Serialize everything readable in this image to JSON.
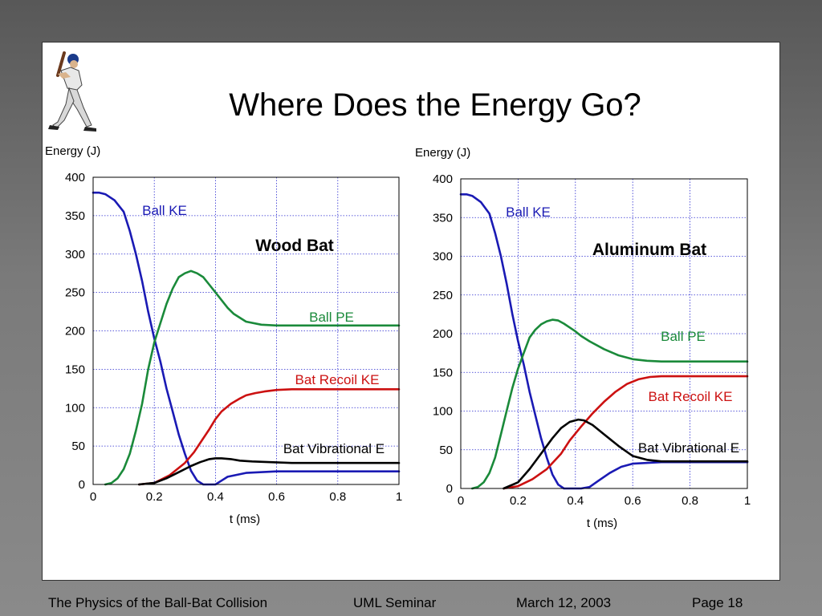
{
  "slide": {
    "title": "Where Does the Energy Go?"
  },
  "footer": {
    "left": "The Physics of the Ball-Bat Collision",
    "center": "UML Seminar",
    "date": "March 12, 2003",
    "page": "Page 18"
  },
  "chart_data": [
    {
      "type": "line",
      "title": "Wood Bat",
      "xlabel": "t (ms)",
      "ylabel": "Energy (J)",
      "xlim": [
        0,
        1
      ],
      "ylim": [
        0,
        400
      ],
      "xticks": [
        "0",
        "0.2",
        "0.4",
        "0.6",
        "0.8",
        "1"
      ],
      "yticks": [
        "0",
        "50",
        "100",
        "150",
        "200",
        "250",
        "300",
        "350",
        "400"
      ],
      "grid": true,
      "series": [
        {
          "name": "Ball KE",
          "color": "#1a1ab4",
          "x": [
            0,
            0.02,
            0.04,
            0.07,
            0.1,
            0.12,
            0.14,
            0.16,
            0.18,
            0.2,
            0.22,
            0.24,
            0.26,
            0.28,
            0.3,
            0.32,
            0.34,
            0.36,
            0.38,
            0.4,
            0.42,
            0.44,
            0.5,
            0.6,
            0.7,
            0.8,
            1.0
          ],
          "y": [
            380,
            380,
            378,
            370,
            355,
            330,
            300,
            265,
            225,
            190,
            160,
            125,
            95,
            65,
            40,
            18,
            5,
            0,
            0,
            0,
            5,
            10,
            15,
            17,
            17,
            17,
            17
          ]
        },
        {
          "name": "Ball PE",
          "color": "#1a8a3a",
          "x": [
            0.04,
            0.06,
            0.08,
            0.1,
            0.12,
            0.14,
            0.16,
            0.18,
            0.2,
            0.22,
            0.24,
            0.26,
            0.28,
            0.3,
            0.32,
            0.34,
            0.36,
            0.38,
            0.4,
            0.42,
            0.44,
            0.46,
            0.5,
            0.55,
            0.6,
            0.7,
            0.8,
            1.0
          ],
          "y": [
            0,
            2,
            8,
            20,
            40,
            70,
            105,
            150,
            185,
            210,
            235,
            255,
            270,
            275,
            278,
            275,
            270,
            260,
            250,
            240,
            230,
            222,
            212,
            208,
            207,
            207,
            207,
            207
          ]
        },
        {
          "name": "Bat Recoil KE",
          "color": "#cc1111",
          "x": [
            0.15,
            0.2,
            0.25,
            0.3,
            0.33,
            0.36,
            0.38,
            0.4,
            0.42,
            0.45,
            0.48,
            0.5,
            0.53,
            0.56,
            0.6,
            0.65,
            0.7,
            0.8,
            1.0
          ],
          "y": [
            0,
            2,
            12,
            28,
            42,
            60,
            72,
            85,
            95,
            105,
            112,
            116,
            119,
            121,
            123,
            124,
            124,
            124,
            124
          ]
        },
        {
          "name": "Bat Vibrational E",
          "color": "#000000",
          "x": [
            0.15,
            0.2,
            0.24,
            0.28,
            0.32,
            0.35,
            0.38,
            0.4,
            0.42,
            0.45,
            0.48,
            0.52,
            0.58,
            0.65,
            0.75,
            0.85,
            1.0
          ],
          "y": [
            0,
            2,
            8,
            16,
            24,
            29,
            33,
            34,
            34,
            33,
            31,
            30,
            29,
            28,
            28,
            28,
            28
          ]
        }
      ]
    },
    {
      "type": "line",
      "title": "Aluminum Bat",
      "xlabel": "t (ms)",
      "ylabel": "Energy (J)",
      "xlim": [
        0,
        1
      ],
      "ylim": [
        0,
        400
      ],
      "xticks": [
        "0",
        "0.2",
        "0.4",
        "0.6",
        "0.8",
        "1"
      ],
      "yticks": [
        "0",
        "50",
        "100",
        "150",
        "200",
        "250",
        "300",
        "350",
        "400"
      ],
      "grid": true,
      "series": [
        {
          "name": "Ball KE",
          "color": "#1a1ab4",
          "x": [
            0,
            0.02,
            0.04,
            0.07,
            0.1,
            0.12,
            0.14,
            0.16,
            0.18,
            0.2,
            0.22,
            0.24,
            0.26,
            0.28,
            0.3,
            0.32,
            0.34,
            0.36,
            0.38,
            0.4,
            0.42,
            0.45,
            0.48,
            0.52,
            0.56,
            0.6,
            0.7,
            0.8,
            1.0
          ],
          "y": [
            380,
            380,
            378,
            370,
            355,
            330,
            300,
            265,
            225,
            190,
            160,
            125,
            95,
            65,
            40,
            18,
            5,
            0,
            0,
            0,
            0,
            2,
            10,
            20,
            28,
            32,
            34,
            34,
            34
          ]
        },
        {
          "name": "Ball PE",
          "color": "#1a8a3a",
          "x": [
            0.04,
            0.06,
            0.08,
            0.1,
            0.12,
            0.14,
            0.16,
            0.18,
            0.2,
            0.22,
            0.24,
            0.26,
            0.28,
            0.3,
            0.32,
            0.34,
            0.36,
            0.38,
            0.4,
            0.42,
            0.45,
            0.5,
            0.55,
            0.6,
            0.65,
            0.7,
            0.8,
            1.0
          ],
          "y": [
            0,
            2,
            8,
            20,
            40,
            70,
            100,
            130,
            155,
            175,
            195,
            205,
            212,
            216,
            218,
            217,
            213,
            208,
            203,
            197,
            190,
            180,
            172,
            167,
            165,
            164,
            164,
            164
          ]
        },
        {
          "name": "Bat Recoil KE",
          "color": "#cc1111",
          "x": [
            0.15,
            0.2,
            0.25,
            0.3,
            0.35,
            0.38,
            0.42,
            0.46,
            0.5,
            0.54,
            0.58,
            0.62,
            0.66,
            0.7,
            0.8,
            1.0
          ],
          "y": [
            0,
            3,
            12,
            25,
            45,
            62,
            80,
            97,
            112,
            125,
            135,
            141,
            144,
            145,
            145,
            145
          ]
        },
        {
          "name": "Bat Vibrational E",
          "color": "#000000",
          "x": [
            0.15,
            0.2,
            0.24,
            0.28,
            0.32,
            0.35,
            0.38,
            0.41,
            0.43,
            0.46,
            0.5,
            0.55,
            0.6,
            0.65,
            0.7,
            0.8,
            1.0
          ],
          "y": [
            0,
            8,
            25,
            45,
            65,
            78,
            86,
            89,
            88,
            82,
            70,
            55,
            42,
            37,
            35,
            35,
            35
          ]
        }
      ]
    }
  ]
}
